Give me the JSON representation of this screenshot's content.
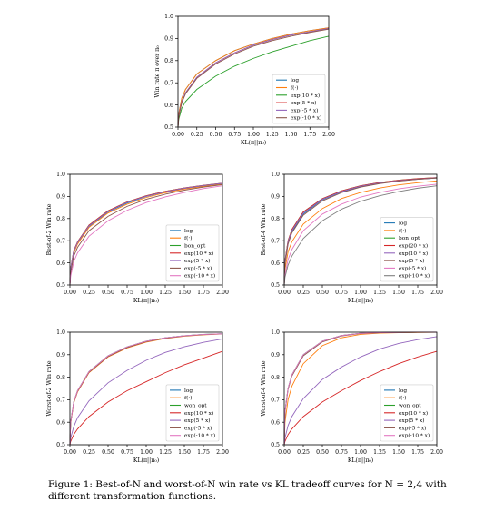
{
  "figure": {
    "caption": "Figure 1: Best-of-N and worst-of-N win rate vs KL tradeoff curves for N = 2,4 with different transformation functions."
  },
  "colors": {
    "blue": "#1f77b4",
    "orange": "#ff7f0e",
    "green": "#2ca02c",
    "red": "#d62728",
    "purple": "#9467bd",
    "brown": "#8c564b",
    "pink": "#e377c2",
    "gray": "#7f7f7f"
  },
  "chart_data": [
    {
      "type": "line",
      "xlabel": "KL(π||π₀)",
      "ylabel": "Win rate π over π₀",
      "xlim": [
        0,
        2.0
      ],
      "ylim": [
        0.5,
        1.0
      ],
      "xticks": [
        "0.00",
        "0.25",
        "0.50",
        "0.75",
        "1.00",
        "1.25",
        "1.50",
        "1.75",
        "2.00"
      ],
      "yticks": [
        "0.5",
        "0.6",
        "0.7",
        "0.8",
        "0.9",
        "1.0"
      ],
      "grid": false,
      "legend_position": "lower right",
      "x": [
        0,
        0.01,
        0.05,
        0.1,
        0.25,
        0.5,
        0.75,
        1.0,
        1.25,
        1.5,
        1.75,
        2.0
      ],
      "series": [
        {
          "name": "log",
          "color": "blue",
          "values": [
            0.5,
            0.56,
            0.63,
            0.67,
            0.74,
            0.8,
            0.845,
            0.875,
            0.9,
            0.92,
            0.935,
            0.948
          ]
        },
        {
          "name": "f(·)",
          "color": "orange",
          "values": [
            0.5,
            0.56,
            0.63,
            0.67,
            0.74,
            0.8,
            0.845,
            0.875,
            0.9,
            0.92,
            0.935,
            0.948
          ]
        },
        {
          "name": "exp(10 * x)",
          "color": "green",
          "values": [
            0.5,
            0.535,
            0.585,
            0.615,
            0.67,
            0.73,
            0.775,
            0.81,
            0.84,
            0.865,
            0.89,
            0.91
          ]
        },
        {
          "name": "exp(5 * x)",
          "color": "red",
          "values": [
            0.5,
            0.55,
            0.615,
            0.655,
            0.725,
            0.79,
            0.835,
            0.87,
            0.895,
            0.915,
            0.93,
            0.945
          ]
        },
        {
          "name": "exp(-5 * x)",
          "color": "purple",
          "values": [
            0.5,
            0.55,
            0.615,
            0.655,
            0.725,
            0.79,
            0.835,
            0.87,
            0.895,
            0.915,
            0.93,
            0.945
          ]
        },
        {
          "name": "exp(-10 * x)",
          "color": "brown",
          "values": [
            0.5,
            0.545,
            0.61,
            0.65,
            0.72,
            0.785,
            0.83,
            0.865,
            0.89,
            0.91,
            0.927,
            0.942
          ]
        }
      ]
    },
    {
      "type": "line",
      "xlabel": "KL(π||π₀)",
      "ylabel": "Best-of-2 Win rate",
      "xlim": [
        0,
        2.0
      ],
      "ylim": [
        0.5,
        1.0
      ],
      "xticks": [
        "0.00",
        "0.25",
        "0.50",
        "0.75",
        "1.00",
        "1.25",
        "1.50",
        "1.75",
        "2.00"
      ],
      "yticks": [
        "0.5",
        "0.6",
        "0.7",
        "0.8",
        "0.9",
        "1.0"
      ],
      "grid": false,
      "legend_position": "lower right",
      "x": [
        0,
        0.01,
        0.05,
        0.1,
        0.25,
        0.5,
        0.75,
        1.0,
        1.25,
        1.5,
        1.75,
        2.0
      ],
      "series": [
        {
          "name": "log",
          "color": "blue",
          "values": [
            0.5,
            0.57,
            0.65,
            0.69,
            0.765,
            0.83,
            0.87,
            0.9,
            0.92,
            0.935,
            0.947,
            0.957
          ]
        },
        {
          "name": "f(·)",
          "color": "orange",
          "values": [
            0.5,
            0.565,
            0.645,
            0.685,
            0.76,
            0.825,
            0.865,
            0.895,
            0.917,
            0.933,
            0.945,
            0.955
          ]
        },
        {
          "name": "bon_opt",
          "color": "green",
          "values": [
            0.5,
            0.575,
            0.655,
            0.695,
            0.77,
            0.835,
            0.875,
            0.903,
            0.923,
            0.938,
            0.95,
            0.96
          ]
        },
        {
          "name": "exp(10 * x)",
          "color": "red",
          "values": [
            0.5,
            0.575,
            0.655,
            0.695,
            0.77,
            0.835,
            0.875,
            0.903,
            0.923,
            0.938,
            0.95,
            0.96
          ]
        },
        {
          "name": "exp(5 * x)",
          "color": "purple",
          "values": [
            0.5,
            0.573,
            0.652,
            0.692,
            0.767,
            0.832,
            0.873,
            0.901,
            0.921,
            0.937,
            0.949,
            0.959
          ]
        },
        {
          "name": "exp(-5 * x)",
          "color": "brown",
          "values": [
            0.5,
            0.555,
            0.63,
            0.67,
            0.745,
            0.81,
            0.855,
            0.887,
            0.91,
            0.928,
            0.942,
            0.953
          ]
        },
        {
          "name": "exp(-10 * x)",
          "color": "pink",
          "values": [
            0.5,
            0.54,
            0.605,
            0.645,
            0.72,
            0.79,
            0.837,
            0.872,
            0.898,
            0.918,
            0.935,
            0.948
          ]
        }
      ]
    },
    {
      "type": "line",
      "xlabel": "KL(π||π₀)",
      "ylabel": "Best-of-4 Win rate",
      "xlim": [
        0,
        2.0
      ],
      "ylim": [
        0.5,
        1.0
      ],
      "xticks": [
        "0.00",
        "0.25",
        "0.50",
        "0.75",
        "1.00",
        "1.25",
        "1.50",
        "1.75",
        "2.00"
      ],
      "yticks": [
        "0.5",
        "0.6",
        "0.7",
        "0.8",
        "0.9",
        "1.0"
      ],
      "grid": false,
      "legend_position": "lower right",
      "x": [
        0,
        0.01,
        0.05,
        0.1,
        0.25,
        0.5,
        0.75,
        1.0,
        1.25,
        1.5,
        1.75,
        2.0
      ],
      "series": [
        {
          "name": "log",
          "color": "blue",
          "values": [
            0.5,
            0.6,
            0.69,
            0.74,
            0.82,
            0.885,
            0.92,
            0.945,
            0.96,
            0.97,
            0.977,
            0.983
          ]
        },
        {
          "name": "f(·)",
          "color": "orange",
          "values": [
            0.5,
            0.57,
            0.65,
            0.695,
            0.775,
            0.845,
            0.89,
            0.918,
            0.938,
            0.952,
            0.962,
            0.97
          ]
        },
        {
          "name": "bon_opt",
          "color": "green",
          "values": [
            0.5,
            0.61,
            0.7,
            0.75,
            0.83,
            0.89,
            0.925,
            0.948,
            0.963,
            0.973,
            0.98,
            0.985
          ]
        },
        {
          "name": "exp(20 * x)",
          "color": "red",
          "values": [
            0.5,
            0.61,
            0.7,
            0.75,
            0.83,
            0.89,
            0.925,
            0.948,
            0.963,
            0.973,
            0.98,
            0.985
          ]
        },
        {
          "name": "exp(10 * x)",
          "color": "purple",
          "values": [
            0.5,
            0.605,
            0.695,
            0.745,
            0.825,
            0.887,
            0.922,
            0.946,
            0.961,
            0.971,
            0.978,
            0.984
          ]
        },
        {
          "name": "exp(5 * x)",
          "color": "brown",
          "values": [
            0.5,
            0.595,
            0.685,
            0.735,
            0.815,
            0.88,
            0.917,
            0.942,
            0.958,
            0.969,
            0.977,
            0.983
          ]
        },
        {
          "name": "exp(-5 * x)",
          "color": "pink",
          "values": [
            0.5,
            0.545,
            0.615,
            0.66,
            0.745,
            0.82,
            0.865,
            0.897,
            0.918,
            0.934,
            0.946,
            0.955
          ]
        },
        {
          "name": "exp(-10 * x)",
          "color": "gray",
          "values": [
            0.5,
            0.535,
            0.59,
            0.63,
            0.71,
            0.79,
            0.842,
            0.878,
            0.903,
            0.922,
            0.937,
            0.948
          ]
        }
      ]
    },
    {
      "type": "line",
      "xlabel": "KL(π||π₀)",
      "ylabel": "Worst-of-2 Win rate",
      "xlim": [
        0,
        2.0
      ],
      "ylim": [
        0.5,
        1.0
      ],
      "xticks": [
        "0.00",
        "0.25",
        "0.50",
        "0.75",
        "1.00",
        "1.25",
        "1.50",
        "1.75",
        "2.00"
      ],
      "yticks": [
        "0.5",
        "0.6",
        "0.7",
        "0.8",
        "0.9",
        "1.0"
      ],
      "grid": false,
      "legend_position": "lower right",
      "x": [
        0,
        0.01,
        0.05,
        0.1,
        0.25,
        0.5,
        0.75,
        1.0,
        1.25,
        1.5,
        1.75,
        2.0
      ],
      "series": [
        {
          "name": "log",
          "color": "blue",
          "values": [
            0.5,
            0.6,
            0.69,
            0.74,
            0.825,
            0.895,
            0.935,
            0.96,
            0.975,
            0.984,
            0.99,
            0.993
          ]
        },
        {
          "name": "f(·)",
          "color": "orange",
          "values": [
            0.5,
            0.595,
            0.685,
            0.735,
            0.82,
            0.89,
            0.93,
            0.956,
            0.972,
            0.982,
            0.988,
            0.992
          ]
        },
        {
          "name": "won_opt",
          "color": "green",
          "values": [
            0.5,
            0.6,
            0.69,
            0.74,
            0.825,
            0.895,
            0.935,
            0.96,
            0.975,
            0.984,
            0.99,
            0.993
          ]
        },
        {
          "name": "exp(10 * x)",
          "color": "red",
          "values": [
            0.5,
            0.515,
            0.545,
            0.57,
            0.625,
            0.69,
            0.74,
            0.78,
            0.82,
            0.855,
            0.885,
            0.915
          ]
        },
        {
          "name": "exp(5 * x)",
          "color": "purple",
          "values": [
            0.5,
            0.53,
            0.58,
            0.62,
            0.695,
            0.775,
            0.83,
            0.875,
            0.91,
            0.935,
            0.955,
            0.97
          ]
        },
        {
          "name": "exp(-5 * x)",
          "color": "brown",
          "values": [
            0.5,
            0.597,
            0.687,
            0.737,
            0.822,
            0.892,
            0.932,
            0.958,
            0.973,
            0.983,
            0.989,
            0.992
          ]
        },
        {
          "name": "exp(-10 * x)",
          "color": "pink",
          "values": [
            0.5,
            0.6,
            0.69,
            0.74,
            0.825,
            0.895,
            0.935,
            0.96,
            0.975,
            0.984,
            0.99,
            0.993
          ]
        }
      ]
    },
    {
      "type": "line",
      "xlabel": "KL(π||π₀)",
      "ylabel": "Worst-of-4 Win rate",
      "xlim": [
        0,
        2.0
      ],
      "ylim": [
        0.5,
        1.0
      ],
      "xticks": [
        "0.00",
        "0.25",
        "0.50",
        "0.75",
        "1.00",
        "1.25",
        "1.50",
        "1.75",
        "2.00"
      ],
      "yticks": [
        "0.5",
        "0.6",
        "0.7",
        "0.8",
        "0.9",
        "1.0"
      ],
      "grid": false,
      "legend_position": "lower right",
      "x": [
        0,
        0.01,
        0.05,
        0.1,
        0.25,
        0.5,
        0.75,
        1.0,
        1.25,
        1.5,
        1.75,
        2.0
      ],
      "series": [
        {
          "name": "log",
          "color": "blue",
          "values": [
            0.5,
            0.65,
            0.75,
            0.81,
            0.9,
            0.96,
            0.985,
            0.995,
            0.998,
            0.999,
            1.0,
            1.0
          ]
        },
        {
          "name": "f(·)",
          "color": "orange",
          "values": [
            0.5,
            0.6,
            0.7,
            0.76,
            0.86,
            0.94,
            0.975,
            0.99,
            0.996,
            0.998,
            0.999,
            1.0
          ]
        },
        {
          "name": "won_opt",
          "color": "green",
          "values": [
            0.5,
            0.65,
            0.75,
            0.81,
            0.9,
            0.96,
            0.985,
            0.995,
            0.998,
            0.999,
            1.0,
            1.0
          ]
        },
        {
          "name": "exp(10 * x)",
          "color": "red",
          "values": [
            0.5,
            0.515,
            0.545,
            0.57,
            0.625,
            0.69,
            0.74,
            0.785,
            0.825,
            0.86,
            0.89,
            0.915
          ]
        },
        {
          "name": "exp(5 * x)",
          "color": "purple",
          "values": [
            0.5,
            0.53,
            0.585,
            0.625,
            0.705,
            0.79,
            0.845,
            0.89,
            0.925,
            0.95,
            0.967,
            0.98
          ]
        },
        {
          "name": "exp(-5 * x)",
          "color": "brown",
          "values": [
            0.5,
            0.645,
            0.745,
            0.805,
            0.895,
            0.957,
            0.983,
            0.994,
            0.998,
            0.999,
            1.0,
            1.0
          ]
        },
        {
          "name": "exp(-10 * x)",
          "color": "pink",
          "values": [
            0.5,
            0.65,
            0.75,
            0.81,
            0.9,
            0.96,
            0.985,
            0.995,
            0.998,
            0.999,
            1.0,
            1.0
          ]
        }
      ]
    }
  ]
}
